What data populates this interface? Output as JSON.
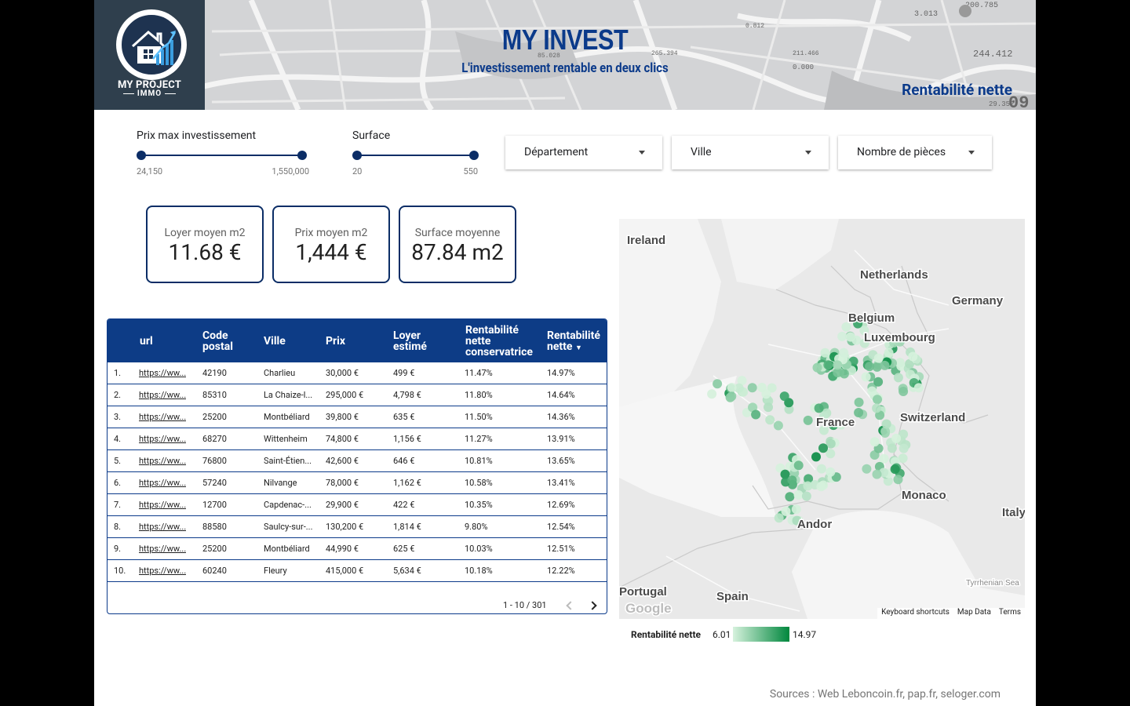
{
  "header": {
    "brand_line1": "MY PROJECT",
    "brand_line2": "IMMO",
    "title": "MY INVEST",
    "subtitle": "L'investissement rentable en deux clics",
    "metric_title": "Rentabilité nette",
    "map_numbers": [
      "200.785",
      "3.013",
      "244.412",
      "211.466",
      "265.394",
      "85.028",
      "29.352",
      "0.000",
      "0.812",
      "09"
    ]
  },
  "filters": {
    "price_slider": {
      "label": "Prix max investissement",
      "min": "24,150",
      "max": "1,550,000"
    },
    "surface_slider": {
      "label": "Surface",
      "min": "20",
      "max": "550"
    },
    "dropdowns": [
      "Département",
      "Ville",
      "Nombre de pièces"
    ]
  },
  "kpis": [
    {
      "label": "Loyer moyen m2",
      "value": "11.68 €"
    },
    {
      "label": "Prix moyen m2",
      "value": "1,444 €"
    },
    {
      "label": "Surface moyenne",
      "value": "87.84 m2"
    }
  ],
  "table": {
    "headers": {
      "url": "url",
      "code_postal_1": "Code",
      "code_postal_2": "postal",
      "ville": "Ville",
      "prix": "Prix",
      "loyer_1": "Loyer",
      "loyer_2": "estimé",
      "rc_1": "Rentabilité",
      "rc_2": "nette",
      "rc_3": "conservatrice",
      "rn_1": "Rentabilité",
      "rn_2": "nette"
    },
    "rows": [
      {
        "n": "1.",
        "url": "https://ww...",
        "cp": "42190",
        "ville": "Charlieu",
        "prix": "30,000 €",
        "loyer": "499 €",
        "rc": "11.47%",
        "rn": "14.97%"
      },
      {
        "n": "2.",
        "url": "https://ww...",
        "cp": "85310",
        "ville": "La Chaize-l...",
        "prix": "295,000 €",
        "loyer": "4,798 €",
        "rc": "11.80%",
        "rn": "14.64%"
      },
      {
        "n": "3.",
        "url": "https://ww...",
        "cp": "25200",
        "ville": "Montbéliard",
        "prix": "39,800 €",
        "loyer": "635 €",
        "rc": "11.50%",
        "rn": "14.36%"
      },
      {
        "n": "4.",
        "url": "https://ww...",
        "cp": "68270",
        "ville": "Wittenheim",
        "prix": "74,800 €",
        "loyer": "1,156 €",
        "rc": "11.27%",
        "rn": "13.91%"
      },
      {
        "n": "5.",
        "url": "https://ww...",
        "cp": "76800",
        "ville": "Saint-Étien...",
        "prix": "42,600 €",
        "loyer": "646 €",
        "rc": "10.81%",
        "rn": "13.65%"
      },
      {
        "n": "6.",
        "url": "https://ww...",
        "cp": "57240",
        "ville": "Nilvange",
        "prix": "78,000 €",
        "loyer": "1,162 €",
        "rc": "10.58%",
        "rn": "13.41%"
      },
      {
        "n": "7.",
        "url": "https://ww...",
        "cp": "12700",
        "ville": "Capdenac-...",
        "prix": "29,900 €",
        "loyer": "422 €",
        "rc": "10.35%",
        "rn": "12.69%"
      },
      {
        "n": "8.",
        "url": "https://ww...",
        "cp": "88580",
        "ville": "Saulcy-sur-...",
        "prix": "130,200 €",
        "loyer": "1,814 €",
        "rc": "9.80%",
        "rn": "12.54%"
      },
      {
        "n": "9.",
        "url": "https://ww...",
        "cp": "25200",
        "ville": "Montbéliard",
        "prix": "44,990 €",
        "loyer": "625 €",
        "rc": "10.03%",
        "rn": "12.51%"
      },
      {
        "n": "10.",
        "url": "https://ww...",
        "cp": "60240",
        "ville": "Fleury",
        "prix": "415,000 €",
        "loyer": "5,634 €",
        "rc": "10.18%",
        "rn": "12.22%"
      }
    ],
    "pagination": "1 - 10 / 301"
  },
  "map": {
    "labels": [
      "Ireland",
      "Netherlands",
      "Germany",
      "Belgium",
      "Luxembourg",
      "France",
      "Switzerland",
      "Monaco",
      "Andor",
      "Italy",
      "Portugal",
      "Spain",
      "Tyrrhenian Sea",
      "Google"
    ],
    "footer": [
      "Keyboard shortcuts",
      "Map Data",
      "Terms"
    ],
    "legend_title": "Rentabilité nette",
    "legend_min": "6.01",
    "legend_max": "14.97",
    "colors": {
      "light": "#d6f2dd",
      "dark": "#00873d"
    }
  },
  "sources": "Sources : Web Leboncoin.fr, pap.fr, seloger.com"
}
